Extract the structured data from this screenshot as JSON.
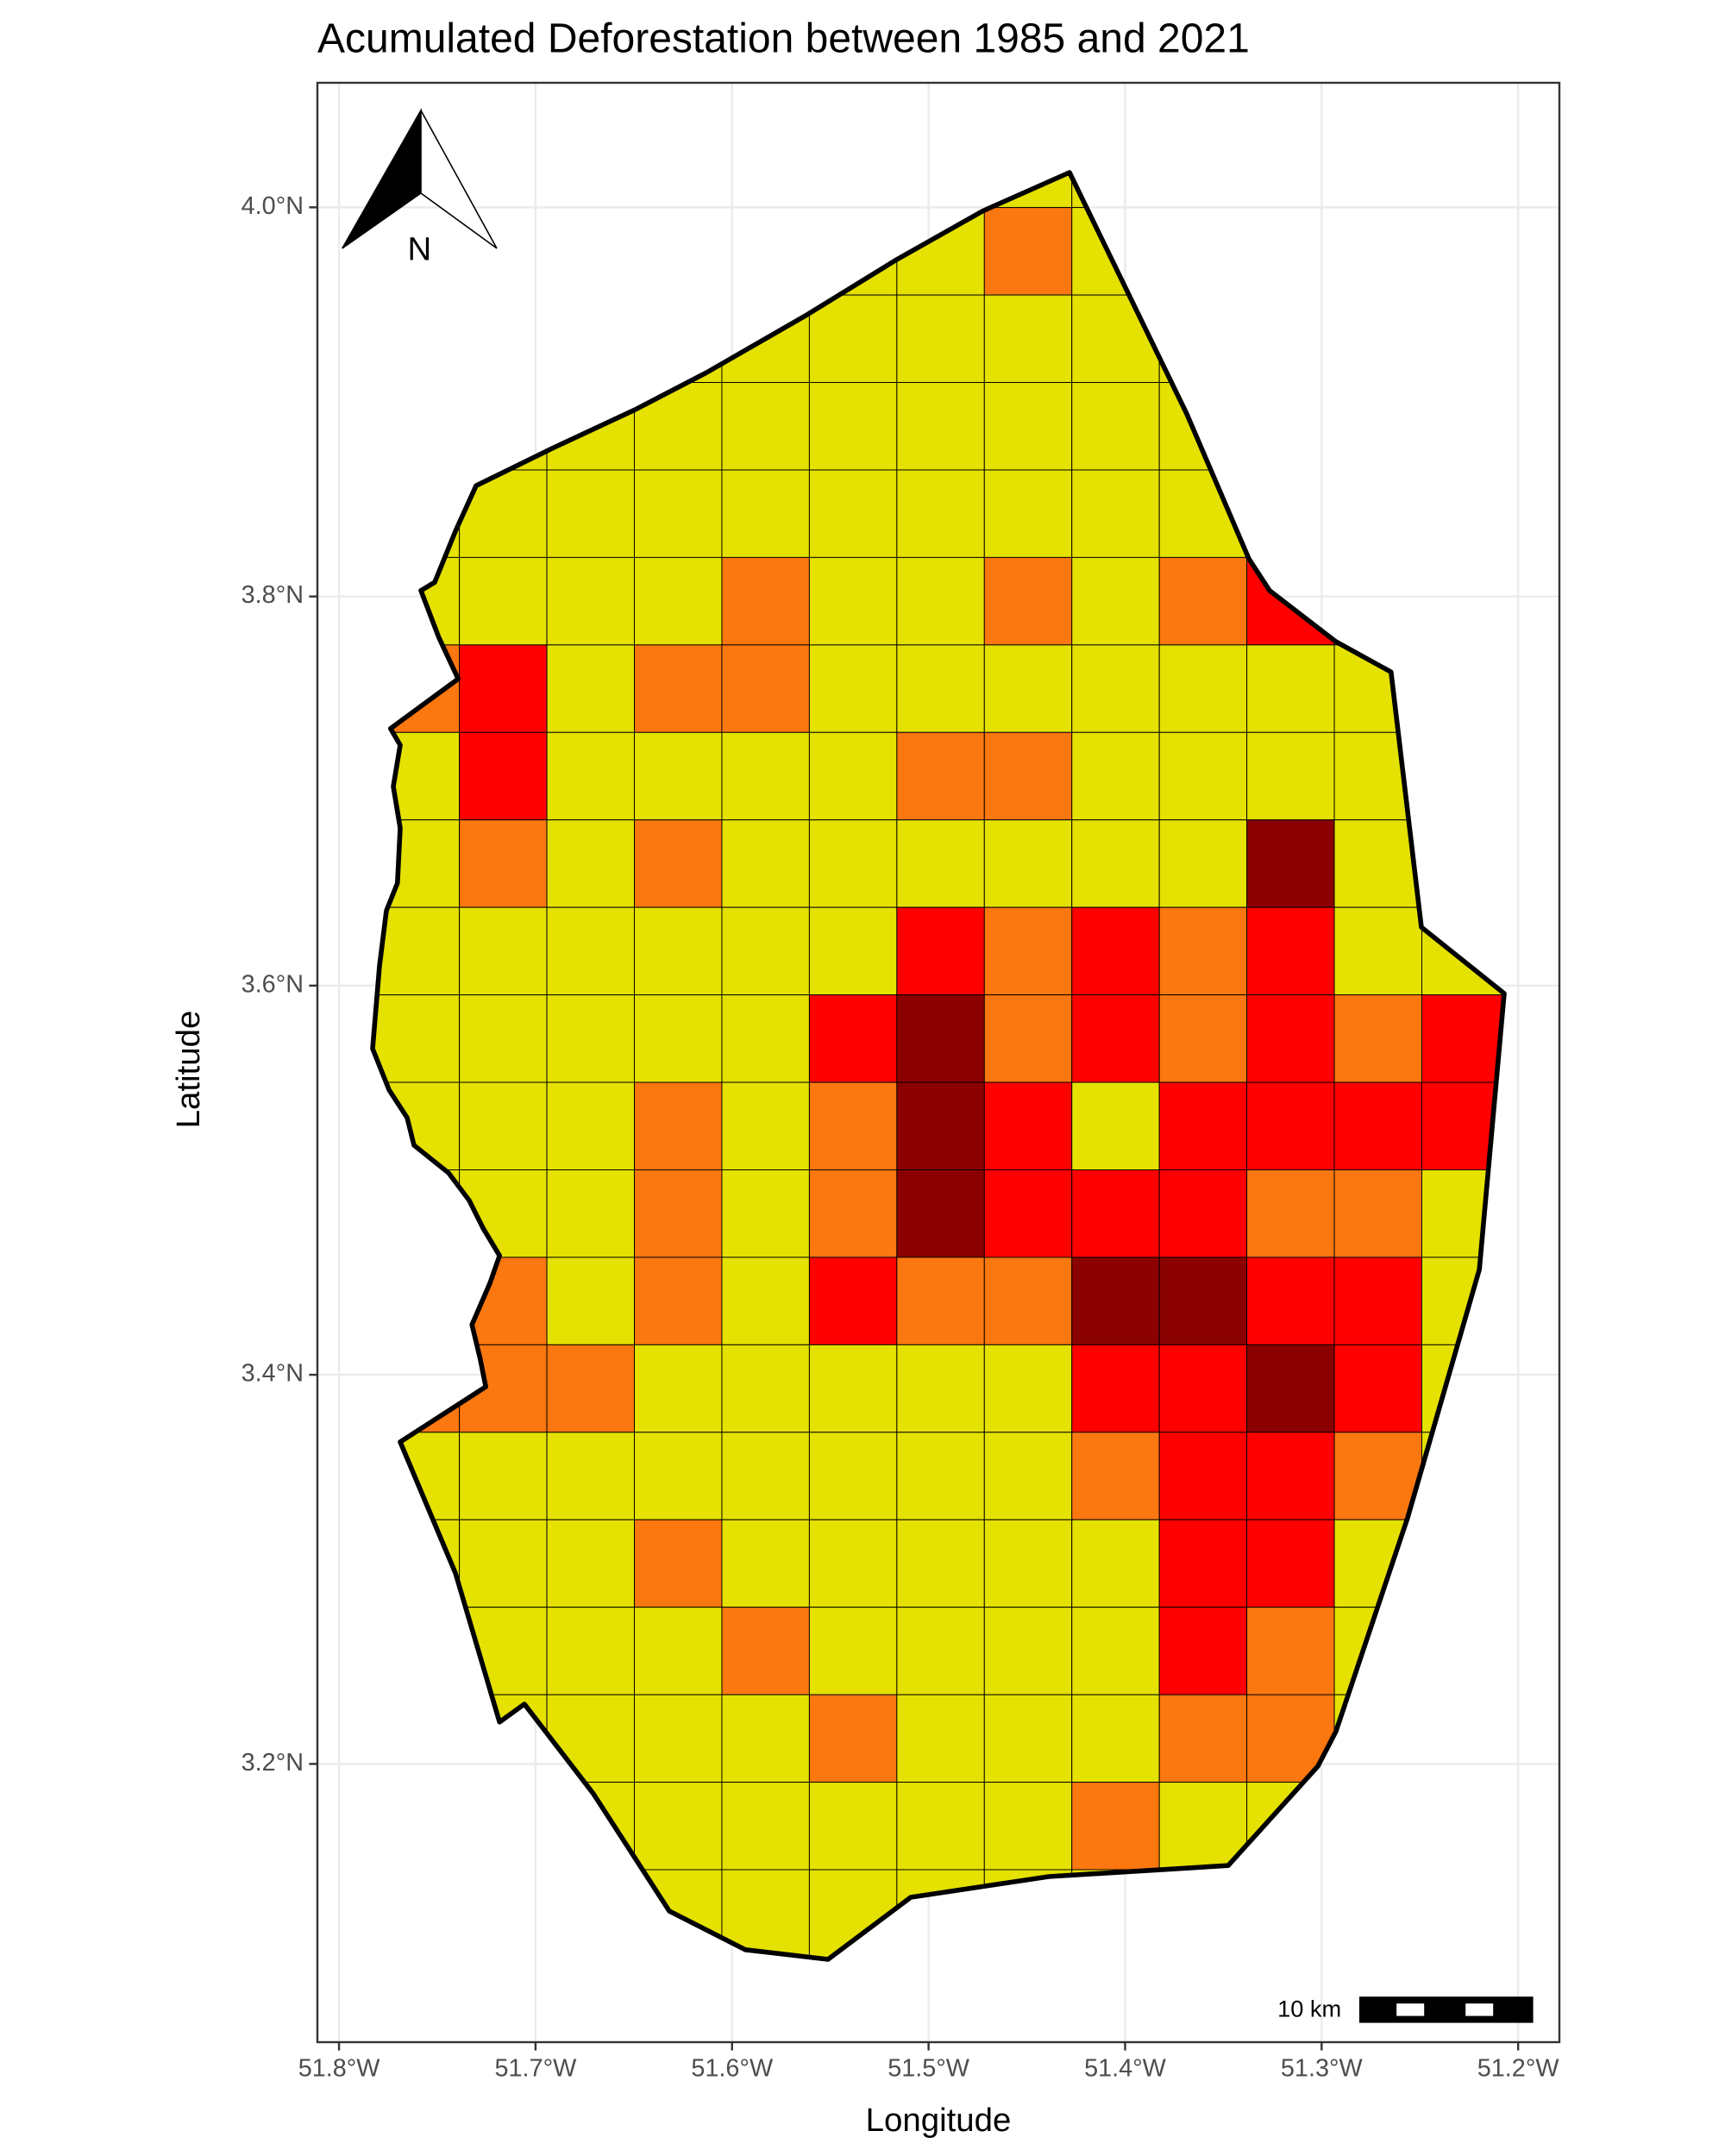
{
  "chart_data": {
    "type": "grid-map",
    "title": "Acumulated Deforestation between 1985 and 2021",
    "x_label": "Longitude",
    "y_label": "Latitude",
    "xlim": [
      -51.811,
      -51.179
    ],
    "ylim": [
      3.057,
      4.064
    ],
    "xticks": [
      {
        "value": -51.8,
        "label": "51.8°W"
      },
      {
        "value": -51.7,
        "label": "51.7°W"
      },
      {
        "value": -51.6,
        "label": "51.6°W"
      },
      {
        "value": -51.5,
        "label": "51.5°W"
      },
      {
        "value": -51.4,
        "label": "51.4°W"
      },
      {
        "value": -51.3,
        "label": "51.3°W"
      },
      {
        "value": -51.2,
        "label": "51.2°W"
      }
    ],
    "yticks": [
      {
        "value": 3.2,
        "label": "3.2°N"
      },
      {
        "value": 3.4,
        "label": "3.4°N"
      },
      {
        "value": 3.6,
        "label": "3.6°N"
      },
      {
        "value": 3.8,
        "label": "3.8°N"
      },
      {
        "value": 4.0,
        "label": "4.0°N"
      }
    ],
    "grid": true,
    "colors": [
      "#e5e100",
      "#fb770f",
      "#ff0000",
      "#8b0000"
    ],
    "cells": [
      [
        0,
        0,
        0,
        0,
        0,
        0,
        0,
        0,
        0,
        0,
        0,
        0,
        0
      ],
      [
        0,
        0,
        0,
        0,
        0,
        0,
        0,
        1,
        0,
        0,
        0,
        0,
        0
      ],
      [
        0,
        0,
        0,
        0,
        0,
        0,
        0,
        0,
        0,
        0,
        0,
        0,
        0
      ],
      [
        0,
        0,
        0,
        0,
        0,
        0,
        0,
        0,
        0,
        0,
        0,
        0,
        0
      ],
      [
        0,
        0,
        0,
        0,
        0,
        0,
        0,
        0,
        0,
        0,
        0,
        0,
        0
      ],
      [
        0,
        0,
        0,
        0,
        1,
        0,
        0,
        1,
        0,
        1,
        2,
        0,
        0
      ],
      [
        1,
        2,
        0,
        1,
        1,
        0,
        0,
        0,
        0,
        0,
        0,
        0,
        0
      ],
      [
        0,
        2,
        0,
        0,
        0,
        0,
        1,
        1,
        0,
        0,
        0,
        0,
        0
      ],
      [
        0,
        1,
        0,
        1,
        0,
        0,
        0,
        0,
        0,
        0,
        3,
        0,
        0
      ],
      [
        0,
        0,
        0,
        0,
        0,
        0,
        2,
        1,
        2,
        1,
        2,
        0,
        0
      ],
      [
        0,
        0,
        0,
        0,
        0,
        2,
        3,
        1,
        2,
        1,
        2,
        1,
        2
      ],
      [
        0,
        0,
        0,
        1,
        0,
        1,
        3,
        2,
        0,
        2,
        2,
        2,
        2
      ],
      [
        0,
        0,
        0,
        1,
        0,
        1,
        3,
        2,
        2,
        2,
        1,
        1,
        0
      ],
      [
        0,
        1,
        0,
        1,
        0,
        2,
        1,
        1,
        3,
        3,
        2,
        2,
        0
      ],
      [
        1,
        1,
        1,
        0,
        0,
        0,
        0,
        0,
        2,
        2,
        3,
        2,
        0
      ],
      [
        0,
        0,
        0,
        0,
        0,
        0,
        0,
        0,
        1,
        2,
        2,
        1,
        0
      ],
      [
        0,
        0,
        0,
        1,
        0,
        0,
        0,
        0,
        0,
        2,
        2,
        0,
        0
      ],
      [
        0,
        0,
        0,
        0,
        1,
        0,
        0,
        0,
        0,
        2,
        1,
        0,
        0
      ],
      [
        0,
        0,
        0,
        0,
        0,
        1,
        0,
        0,
        0,
        1,
        1,
        0,
        0
      ],
      [
        0,
        0,
        0,
        0,
        0,
        0,
        0,
        0,
        1,
        0,
        0,
        0,
        0
      ],
      [
        0,
        0,
        0,
        0,
        0,
        0,
        0,
        0,
        0,
        0,
        0,
        0,
        0
      ]
    ],
    "north_label": "N",
    "scale_label": "10 km"
  }
}
